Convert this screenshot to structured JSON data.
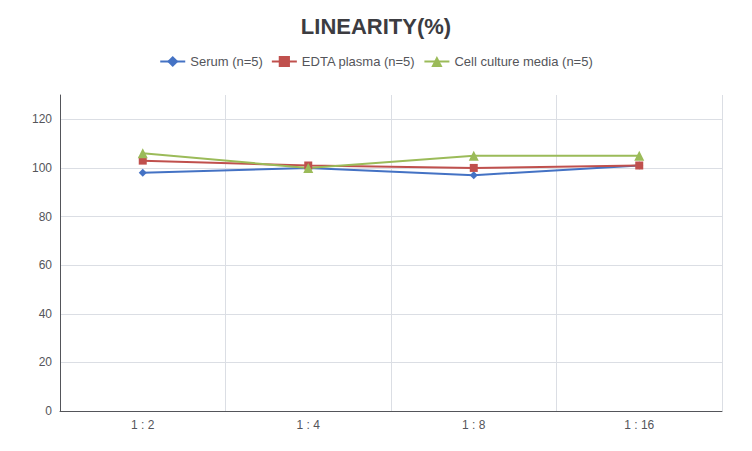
{
  "chart_data": {
    "type": "line",
    "title": "LINEARITY(%)",
    "categories": [
      "1 : 2",
      "1 : 4",
      "1 : 8",
      "1 : 16"
    ],
    "series": [
      {
        "name": "Serum (n=5)",
        "color": "#4472C4",
        "marker": "diamond",
        "values": [
          98,
          100,
          97,
          101
        ]
      },
      {
        "name": "EDTA plasma (n=5)",
        "color": "#C0504D",
        "marker": "square",
        "values": [
          103,
          101,
          100,
          101
        ]
      },
      {
        "name": "Cell culture media (n=5)",
        "color": "#9BBB59",
        "marker": "triangle",
        "values": [
          106,
          100,
          105,
          105
        ]
      }
    ],
    "ylim": [
      0,
      130
    ],
    "yticks": [
      0,
      20,
      40,
      60,
      80,
      100,
      120
    ],
    "grid": true,
    "legend": "top"
  }
}
